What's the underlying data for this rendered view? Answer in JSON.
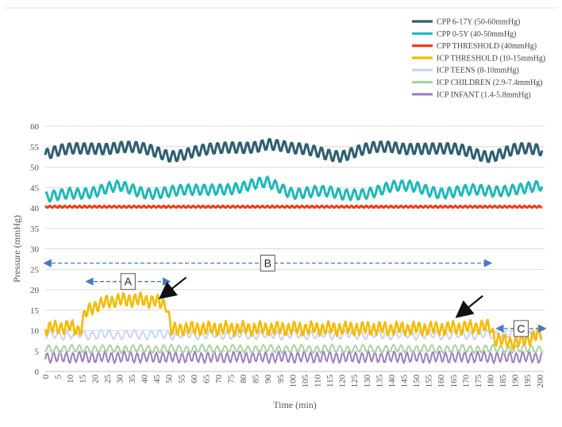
{
  "chart_data": {
    "type": "line",
    "title": "",
    "xlabel": "Time (min)",
    "ylabel": "Pressure (mmHg)",
    "xlim": [
      0,
      202
    ],
    "ylim": [
      0,
      60
    ],
    "yticks": [
      "0",
      "5",
      "10",
      "15",
      "20",
      "25",
      "30",
      "35",
      "40",
      "45",
      "50",
      "55",
      "60"
    ],
    "xticks": [
      "0",
      "5",
      "10",
      "15",
      "20",
      "25",
      "30",
      "35",
      "40",
      "45",
      "50",
      "55",
      "60",
      "65",
      "70",
      "75",
      "80",
      "85",
      "90",
      "95",
      "100",
      "105",
      "110",
      "115",
      "120",
      "125",
      "130",
      "135",
      "140",
      "145",
      "150",
      "155",
      "160",
      "165",
      "170",
      "175",
      "180",
      "185",
      "190",
      "195",
      "200"
    ],
    "grid": true,
    "legend_position": "top-right",
    "series": [
      {
        "name": "CPP 6-17Y (50-60mmHg)",
        "color": "#2f5f6f",
        "x": [
          0,
          10,
          20,
          30,
          40,
          50,
          60,
          70,
          80,
          90,
          100,
          110,
          120,
          130,
          140,
          150,
          160,
          170,
          180,
          190,
          200
        ],
        "y": [
          53,
          54,
          55,
          55,
          54,
          53,
          54,
          54,
          55,
          56,
          54,
          54,
          53,
          54,
          55,
          55,
          54,
          54,
          53,
          54,
          54
        ]
      },
      {
        "name": "CPP 0-5Y (40-50mmHg)",
        "color": "#1fb8b8",
        "x": [
          0,
          10,
          20,
          30,
          40,
          50,
          60,
          70,
          80,
          90,
          100,
          110,
          120,
          130,
          140,
          150,
          160,
          170,
          180,
          190,
          200
        ],
        "y": [
          42,
          44,
          44,
          45,
          44,
          44,
          44,
          45,
          45,
          46,
          44,
          44,
          43,
          44,
          45,
          45,
          44,
          44,
          44,
          45,
          45
        ]
      },
      {
        "name": "CPP THRESHOLD (40mmHg)",
        "color": "#e8401c",
        "x": [
          0,
          50,
          100,
          150,
          202
        ],
        "y": [
          40.3,
          40.3,
          40.3,
          40.3,
          40.3
        ]
      },
      {
        "name": "ICP THRESHOLD (10-15mmHg)",
        "color": "#f5bb00",
        "x": [
          0,
          10,
          14,
          16,
          20,
          25,
          30,
          40,
          45,
          49,
          51,
          55,
          60,
          80,
          100,
          120,
          140,
          160,
          180,
          182,
          185,
          190,
          195,
          200
        ],
        "y": [
          10.5,
          11,
          10,
          14,
          16,
          17,
          17.5,
          17.5,
          17,
          16.5,
          10,
          10.5,
          10.5,
          10.5,
          10.5,
          10.5,
          10.5,
          10.5,
          11,
          8,
          7.5,
          7,
          8,
          9
        ]
      },
      {
        "name": "ICP TEENS (8-10mmHg)",
        "color": "#c8d4ee",
        "x": [
          0,
          50,
          100,
          150,
          200
        ],
        "y": [
          9,
          9,
          9,
          9,
          9
        ]
      },
      {
        "name": "ICP CHILDREN (2.9-7.4mmHg)",
        "color": "#a9d39e",
        "x": [
          0,
          50,
          100,
          150,
          200
        ],
        "y": [
          5.5,
          5.5,
          5.5,
          5.5,
          5.5
        ]
      },
      {
        "name": "ICP INFANT (1.4-5.8mmHg)",
        "color": "#9b80c0",
        "x": [
          0,
          50,
          100,
          150,
          200
        ],
        "y": [
          3.5,
          3.5,
          3.5,
          3.5,
          3.5
        ]
      }
    ],
    "annotations": [
      {
        "label": "A",
        "x_range": [
          17,
          50
        ],
        "y": 22
      },
      {
        "label": "B",
        "x_range": [
          0,
          180
        ],
        "y": 26.5
      },
      {
        "label": "C",
        "x_range": [
          183,
          202
        ],
        "y": 10.5
      }
    ]
  }
}
